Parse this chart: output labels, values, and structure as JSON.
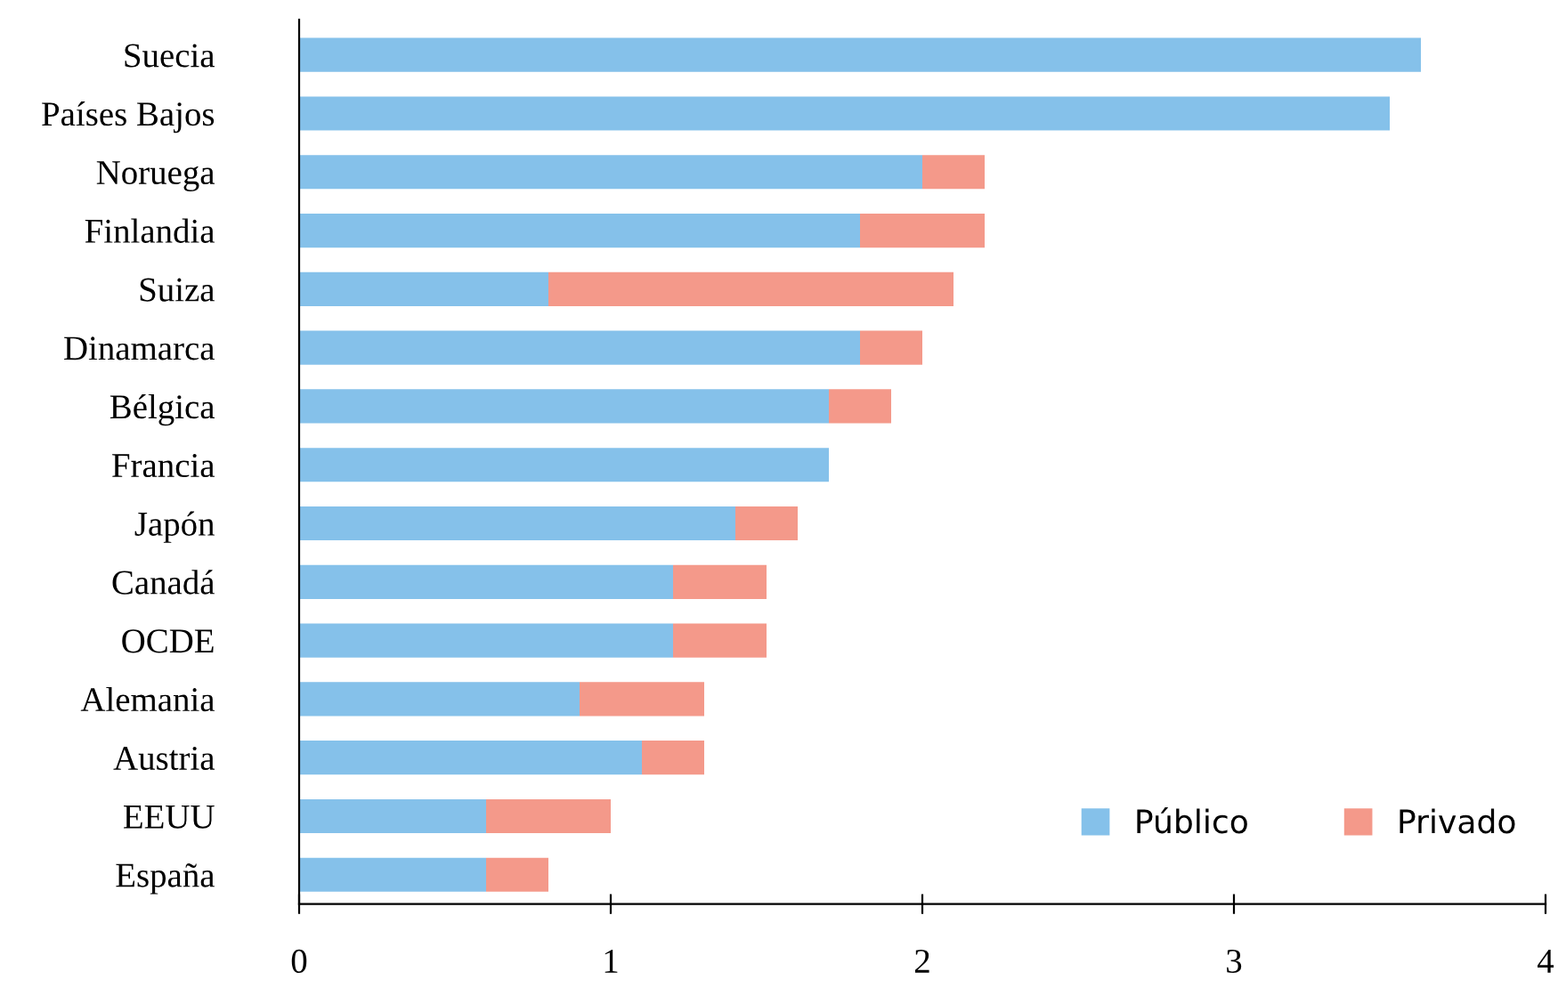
{
  "chart_data": {
    "type": "bar",
    "orientation": "horizontal",
    "stacked": true,
    "categories": [
      "Suecia",
      "Países Bajos",
      "Noruega",
      "Finlandia",
      "Suiza",
      "Dinamarca",
      "Bélgica",
      "Francia",
      "Japón",
      "Canadá",
      "OCDE",
      "Alemania",
      "Austria",
      "EEUU",
      "España"
    ],
    "series": [
      {
        "name": "Público",
        "color": "#85c1ea",
        "values": [
          3.6,
          3.5,
          2.0,
          1.8,
          0.8,
          1.8,
          1.7,
          1.7,
          1.4,
          1.2,
          1.2,
          0.9,
          1.1,
          0.6,
          0.6
        ]
      },
      {
        "name": "Privado",
        "color": "#f4998a",
        "values": [
          0,
          0,
          0.2,
          0.4,
          1.3,
          0.2,
          0.2,
          0,
          0.2,
          0.3,
          0.3,
          0.4,
          0.2,
          0.4,
          0.2
        ]
      }
    ],
    "xlim": [
      0,
      4
    ],
    "xticks": [
      0,
      1,
      2,
      3,
      4
    ],
    "grid": false,
    "legend": "bottom right"
  }
}
